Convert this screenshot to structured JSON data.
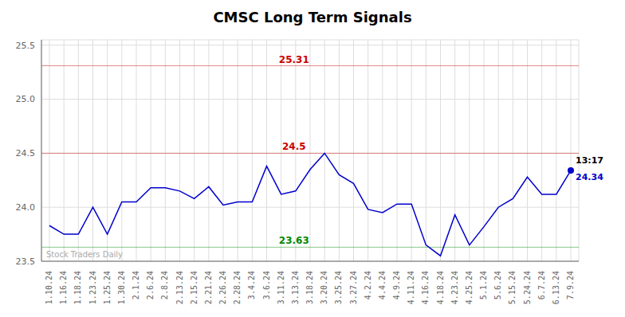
{
  "chart_data": {
    "type": "line",
    "title": "CMSC Long Term Signals",
    "categories": [
      "1.10.24",
      "1.16.24",
      "1.18.24",
      "1.23.24",
      "1.25.24",
      "1.30.24",
      "2.1.24",
      "2.6.24",
      "2.8.24",
      "2.13.24",
      "2.15.24",
      "2.21.24",
      "2.26.24",
      "2.28.24",
      "3.4.24",
      "3.6.24",
      "3.11.24",
      "3.13.24",
      "3.18.24",
      "3.20.24",
      "3.25.24",
      "3.27.24",
      "4.2.24",
      "4.4.24",
      "4.9.24",
      "4.11.24",
      "4.16.24",
      "4.18.24",
      "4.23.24",
      "4.25.24",
      "5.1.24",
      "5.6.24",
      "5.15.24",
      "5.24.24",
      "6.7.24",
      "6.13.24",
      "7.9.24"
    ],
    "values": [
      23.83,
      23.75,
      23.75,
      24.0,
      23.75,
      24.05,
      24.05,
      24.18,
      24.18,
      24.15,
      24.08,
      24.19,
      24.02,
      24.05,
      24.05,
      24.38,
      24.12,
      24.15,
      24.35,
      24.5,
      24.3,
      24.22,
      23.98,
      23.95,
      24.03,
      24.03,
      23.65,
      23.55,
      23.93,
      23.65,
      23.82,
      24.0,
      24.08,
      24.28,
      24.12,
      24.12,
      24.34
    ],
    "color": "#0000cc",
    "ylim": [
      23.5,
      25.55
    ],
    "yticks": [
      23.5,
      {
        "value": 24.0,
        "label": "24.0"
      },
      24.5,
      {
        "value": 25.0,
        "label": "25.0"
      },
      25.5
    ],
    "grid": true,
    "hlines": [
      {
        "value": 25.31,
        "label": "25.31",
        "color": "#cc0000"
      },
      {
        "value": 24.5,
        "label": "24.5",
        "color": "#cc0000"
      },
      {
        "value": 23.63,
        "label": "23.63",
        "color": "#008800"
      }
    ],
    "annotations": [
      "13:17",
      "24.34"
    ],
    "watermark": "Stock Traders Daily"
  }
}
